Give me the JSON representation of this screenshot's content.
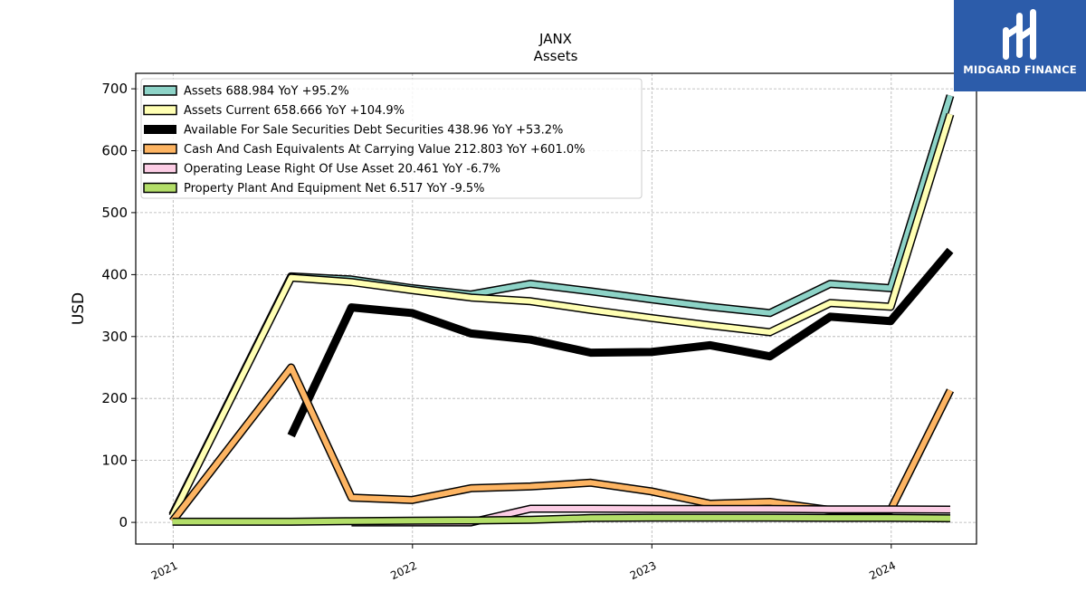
{
  "brand": {
    "name": "MIDGARD FINANCE"
  },
  "chart_data": {
    "type": "line",
    "title": "JANX",
    "subtitle": "Assets",
    "ylabel": "USD",
    "xlabel": "",
    "ylim": [
      -35,
      725
    ],
    "xlim": [
      "2020-11-05",
      "2024-05-10"
    ],
    "yticks": [
      0,
      100,
      200,
      300,
      400,
      500,
      600,
      700
    ],
    "xticks": [
      {
        "label": "2021",
        "date": "2021-01-01"
      },
      {
        "label": "2022",
        "date": "2022-01-01"
      },
      {
        "label": "2023",
        "date": "2023-01-01"
      },
      {
        "label": "2024",
        "date": "2024-01-01"
      }
    ],
    "grid": true,
    "legend_position": "top-left",
    "series": [
      {
        "name": "Assets",
        "legend": "Assets  688.984 YoY +95.2%",
        "color": "#8dd3c7",
        "style": "outlined",
        "points": [
          [
            "2020-12-31",
            12
          ],
          [
            "2021-06-30",
            397
          ],
          [
            "2021-09-30",
            392
          ],
          [
            "2021-12-31",
            378
          ],
          [
            "2022-03-31",
            368
          ],
          [
            "2022-06-30",
            385
          ],
          [
            "2022-09-30",
            373
          ],
          [
            "2022-12-31",
            360
          ],
          [
            "2023-03-31",
            348
          ],
          [
            "2023-06-30",
            338
          ],
          [
            "2023-09-30",
            385
          ],
          [
            "2023-12-31",
            378
          ],
          [
            "2024-03-31",
            689
          ]
        ]
      },
      {
        "name": "Assets Current",
        "legend": "Assets Current  658.666 YoY +104.9%",
        "color": "#ffffb3",
        "style": "outlined",
        "points": [
          [
            "2020-12-31",
            10
          ],
          [
            "2021-06-30",
            395
          ],
          [
            "2021-09-30",
            388
          ],
          [
            "2021-12-31",
            375
          ],
          [
            "2022-03-31",
            363
          ],
          [
            "2022-06-30",
            357
          ],
          [
            "2022-09-30",
            343
          ],
          [
            "2022-12-31",
            330
          ],
          [
            "2023-03-31",
            318
          ],
          [
            "2023-06-30",
            307
          ],
          [
            "2023-09-30",
            354
          ],
          [
            "2023-12-31",
            348
          ],
          [
            "2024-03-31",
            659
          ]
        ]
      },
      {
        "name": "Available For Sale Securities Debt Securities",
        "legend": "Available For Sale Securities Debt Securities  438.96 YoY +53.2%",
        "color": "#000000",
        "style": "solid",
        "points": [
          [
            "2021-06-30",
            140
          ],
          [
            "2021-09-30",
            347
          ],
          [
            "2021-12-31",
            338
          ],
          [
            "2022-03-31",
            305
          ],
          [
            "2022-06-30",
            295
          ],
          [
            "2022-09-30",
            274
          ],
          [
            "2022-12-31",
            275
          ],
          [
            "2023-03-31",
            286
          ],
          [
            "2023-06-30",
            268
          ],
          [
            "2023-09-30",
            332
          ],
          [
            "2023-12-31",
            325
          ],
          [
            "2024-03-31",
            439
          ]
        ]
      },
      {
        "name": "Cash And Cash Equivalents At Carrying Value",
        "legend": "Cash And Cash Equivalents At Carrying Value  212.803 YoY +601.0%",
        "color": "#fdb462",
        "style": "outlined",
        "points": [
          [
            "2020-12-31",
            2
          ],
          [
            "2021-06-30",
            250
          ],
          [
            "2021-09-30",
            40
          ],
          [
            "2021-12-31",
            36
          ],
          [
            "2022-03-31",
            55
          ],
          [
            "2022-06-30",
            58
          ],
          [
            "2022-09-30",
            64
          ],
          [
            "2022-12-31",
            50
          ],
          [
            "2023-03-31",
            30
          ],
          [
            "2023-06-30",
            33
          ],
          [
            "2023-09-30",
            20
          ],
          [
            "2023-12-31",
            20
          ],
          [
            "2024-03-31",
            213
          ]
        ]
      },
      {
        "name": "Operating Lease Right Of Use Asset",
        "legend": "Operating Lease Right Of Use Asset  20.461 YoY -6.7%",
        "color": "#fccde5",
        "style": "outlined",
        "points": [
          [
            "2021-09-30",
            0
          ],
          [
            "2021-12-31",
            0
          ],
          [
            "2022-03-31",
            0
          ],
          [
            "2022-06-30",
            22
          ],
          [
            "2022-09-30",
            22
          ],
          [
            "2022-12-31",
            21.5
          ],
          [
            "2023-03-31",
            21.5
          ],
          [
            "2023-06-30",
            21.5
          ],
          [
            "2023-09-30",
            21
          ],
          [
            "2023-12-31",
            21
          ],
          [
            "2024-03-31",
            20.5
          ]
        ]
      },
      {
        "name": "Property Plant And Equipment Net",
        "legend": "Property Plant And Equipment Net  6.517 YoY -9.5%",
        "color": "#b3de69",
        "style": "outlined",
        "points": [
          [
            "2020-12-31",
            1
          ],
          [
            "2021-06-30",
            1
          ],
          [
            "2021-09-30",
            2
          ],
          [
            "2021-12-31",
            2.5
          ],
          [
            "2022-03-31",
            3
          ],
          [
            "2022-06-30",
            4
          ],
          [
            "2022-09-30",
            7
          ],
          [
            "2022-12-31",
            7.5
          ],
          [
            "2023-03-31",
            7.5
          ],
          [
            "2023-06-30",
            7.5
          ],
          [
            "2023-09-30",
            7.3
          ],
          [
            "2023-12-31",
            7.2
          ],
          [
            "2024-03-31",
            6.5
          ]
        ]
      }
    ]
  }
}
